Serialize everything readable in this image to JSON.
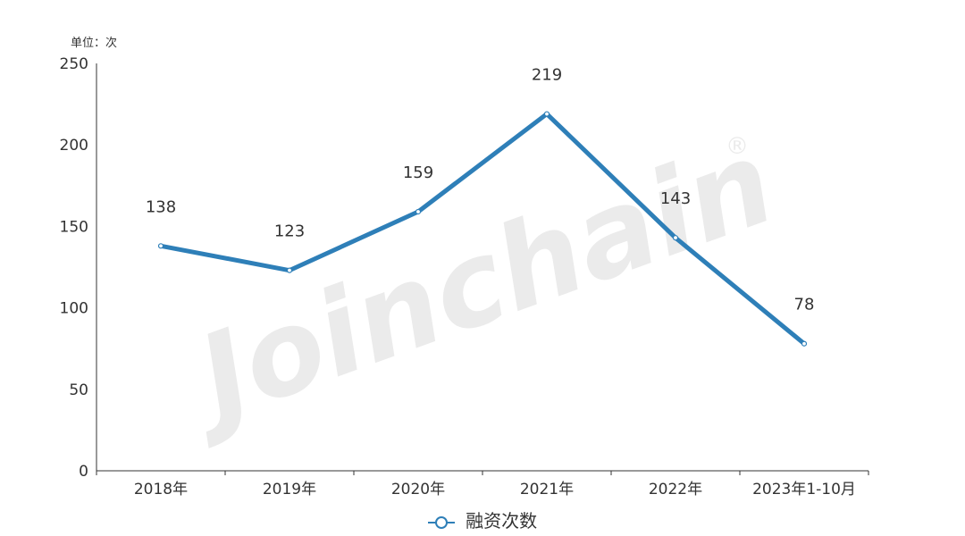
{
  "chart_data": {
    "type": "line",
    "unit_label": "单位：次",
    "categories": [
      "2018年",
      "2019年",
      "2020年",
      "2021年",
      "2022年",
      "2023年1-10月"
    ],
    "series": [
      {
        "name": "融资次数",
        "values": [
          138,
          123,
          159,
          219,
          143,
          78
        ],
        "color": "#2e7fb8"
      }
    ],
    "ylim": [
      0,
      250
    ],
    "yticks": [
      0,
      50,
      100,
      150,
      200,
      250
    ],
    "legend_position": "bottom-center",
    "grid": false,
    "watermark": "Joinchain"
  }
}
